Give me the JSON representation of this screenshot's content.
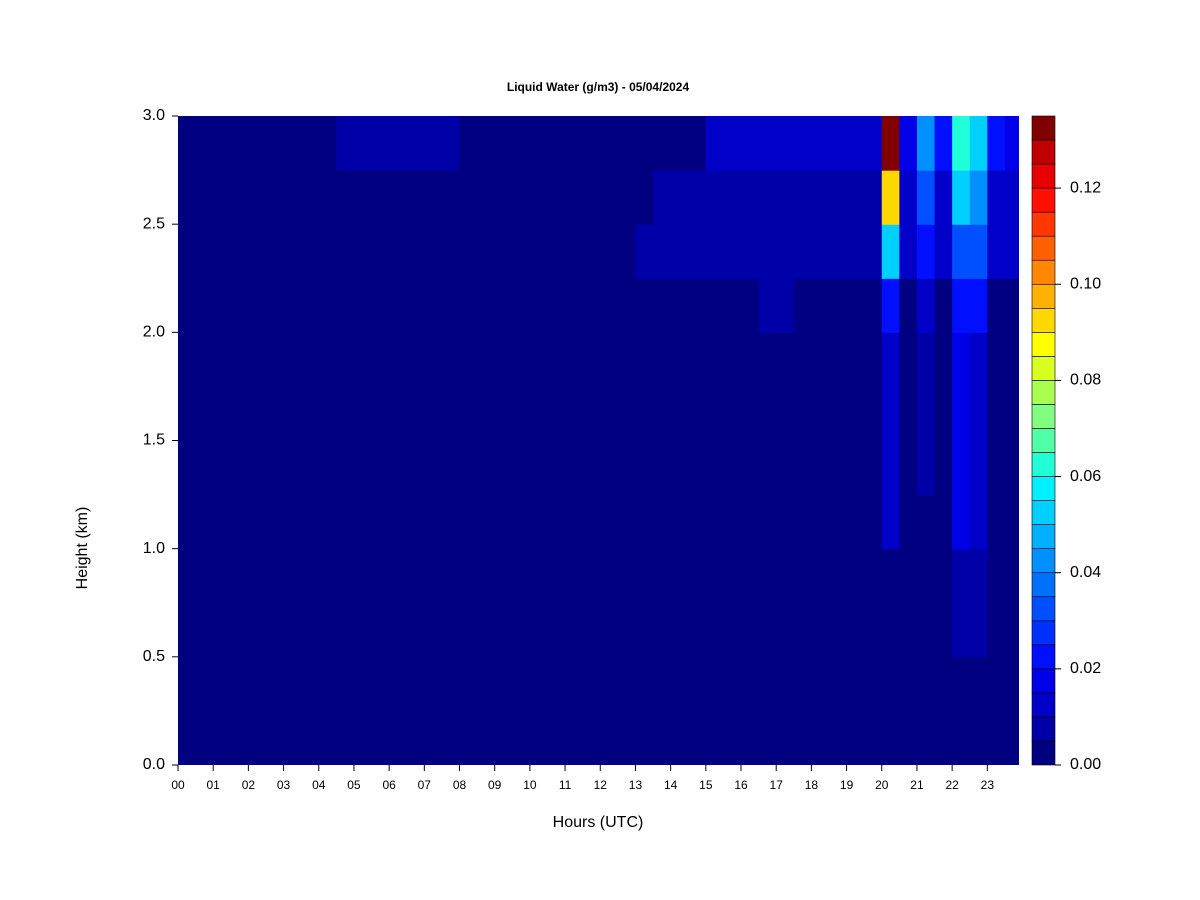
{
  "chart_data": {
    "type": "heatmap",
    "title": "Liquid Water (g/m3) - 05/04/2024",
    "x_label": "Hours (UTC)",
    "y_label": "Height (km)",
    "xlim": [
      0,
      23.9
    ],
    "ylim": [
      0,
      3
    ],
    "xticks": [
      {
        "value": 0,
        "label": "00"
      },
      {
        "value": 1,
        "label": "01"
      },
      {
        "value": 2,
        "label": "02"
      },
      {
        "value": 3,
        "label": "03"
      },
      {
        "value": 4,
        "label": "04"
      },
      {
        "value": 5,
        "label": "05"
      },
      {
        "value": 6,
        "label": "06"
      },
      {
        "value": 7,
        "label": "07"
      },
      {
        "value": 8,
        "label": "08"
      },
      {
        "value": 9,
        "label": "09"
      },
      {
        "value": 10,
        "label": "10"
      },
      {
        "value": 11,
        "label": "11"
      },
      {
        "value": 12,
        "label": "12"
      },
      {
        "value": 13,
        "label": "13"
      },
      {
        "value": 14,
        "label": "14"
      },
      {
        "value": 15,
        "label": "15"
      },
      {
        "value": 16,
        "label": "16"
      },
      {
        "value": 17,
        "label": "17"
      },
      {
        "value": 18,
        "label": "18"
      },
      {
        "value": 19,
        "label": "19"
      },
      {
        "value": 20,
        "label": "20"
      },
      {
        "value": 21,
        "label": "21"
      },
      {
        "value": 22,
        "label": "22"
      },
      {
        "value": 23,
        "label": "23"
      }
    ],
    "yticks": [
      {
        "value": 0,
        "label": "0.0"
      },
      0.5,
      {
        "value": 1,
        "label": "1.0"
      },
      1.5,
      {
        "value": 2,
        "label": "2.0"
      },
      2.5,
      {
        "value": 3,
        "label": "3.0"
      }
    ],
    "x": [
      0.25,
      0.75,
      1.25,
      1.75,
      2.25,
      2.75,
      3.25,
      3.75,
      4.25,
      4.75,
      5.25,
      5.75,
      6.25,
      6.75,
      7.25,
      7.75,
      8.25,
      8.75,
      9.25,
      9.75,
      10.25,
      10.75,
      11.25,
      11.75,
      12.25,
      12.75,
      13.25,
      13.75,
      14.25,
      14.75,
      15.25,
      15.75,
      16.25,
      16.75,
      17.25,
      17.75,
      18.25,
      18.75,
      19.25,
      19.75,
      20.25,
      20.75,
      21.25,
      21.75,
      22.25,
      22.75,
      23.25,
      23.75
    ],
    "y": [
      0.125,
      0.375,
      0.625,
      0.875,
      1.125,
      1.375,
      1.625,
      1.875,
      2.125,
      2.375,
      2.625,
      2.875
    ],
    "z": [
      [
        0,
        0,
        0,
        0,
        0,
        0,
        0,
        0,
        0,
        0,
        0,
        0,
        0,
        0,
        0,
        0,
        0,
        0,
        0,
        0,
        0,
        0,
        0,
        0,
        0,
        0,
        0,
        0,
        0,
        0,
        0,
        0,
        0,
        0,
        0,
        0,
        0,
        0,
        0,
        0,
        0,
        0,
        0,
        0,
        0,
        0,
        0,
        0
      ],
      [
        0,
        0,
        0,
        0,
        0,
        0,
        0,
        0,
        0,
        0,
        0,
        0,
        0,
        0,
        0,
        0,
        0,
        0,
        0,
        0,
        0,
        0,
        0,
        0,
        0,
        0,
        0,
        0,
        0,
        0,
        0,
        0,
        0,
        0,
        0,
        0,
        0,
        0,
        0,
        0,
        0,
        0,
        0,
        0,
        0,
        0,
        0,
        0
      ],
      [
        0,
        0,
        0,
        0,
        0,
        0,
        0,
        0,
        0,
        0,
        0,
        0,
        0,
        0,
        0,
        0,
        0,
        0,
        0,
        0,
        0,
        0,
        0,
        0,
        0,
        0,
        0,
        0,
        0,
        0,
        0,
        0,
        0,
        0,
        0,
        0,
        0,
        0,
        0,
        0,
        0,
        0,
        0,
        0,
        0.008,
        0.008,
        0,
        0
      ],
      [
        0,
        0,
        0,
        0,
        0,
        0,
        0,
        0,
        0,
        0,
        0,
        0,
        0,
        0,
        0,
        0,
        0,
        0,
        0,
        0,
        0,
        0,
        0,
        0,
        0,
        0,
        0,
        0,
        0,
        0,
        0,
        0,
        0,
        0,
        0,
        0,
        0,
        0,
        0,
        0,
        0,
        0,
        0,
        0,
        0.008,
        0.008,
        0,
        0
      ],
      [
        0,
        0,
        0,
        0,
        0,
        0,
        0,
        0,
        0,
        0,
        0,
        0,
        0,
        0,
        0,
        0,
        0,
        0,
        0,
        0,
        0,
        0,
        0,
        0,
        0,
        0,
        0,
        0,
        0,
        0,
        0,
        0,
        0,
        0,
        0,
        0,
        0,
        0,
        0,
        0,
        0.01,
        0,
        0,
        0,
        0.015,
        0.012,
        0,
        0
      ],
      [
        0,
        0,
        0,
        0,
        0,
        0,
        0,
        0,
        0,
        0,
        0,
        0,
        0,
        0,
        0,
        0,
        0,
        0,
        0,
        0,
        0,
        0,
        0,
        0,
        0,
        0,
        0,
        0,
        0,
        0,
        0,
        0,
        0,
        0,
        0,
        0,
        0,
        0,
        0,
        0,
        0.01,
        0,
        0.008,
        0,
        0.015,
        0.012,
        0,
        0
      ],
      [
        0,
        0,
        0,
        0,
        0,
        0,
        0,
        0,
        0,
        0,
        0,
        0,
        0,
        0,
        0,
        0,
        0,
        0,
        0,
        0,
        0,
        0,
        0,
        0,
        0,
        0,
        0,
        0,
        0,
        0,
        0,
        0,
        0,
        0,
        0,
        0,
        0,
        0,
        0,
        0,
        0.01,
        0,
        0.008,
        0,
        0.015,
        0.012,
        0,
        0
      ],
      [
        0,
        0,
        0,
        0,
        0,
        0,
        0,
        0,
        0,
        0,
        0,
        0,
        0,
        0,
        0,
        0,
        0,
        0,
        0,
        0,
        0,
        0,
        0,
        0,
        0,
        0,
        0,
        0,
        0,
        0,
        0,
        0,
        0,
        0,
        0,
        0,
        0,
        0,
        0,
        0,
        0.01,
        0,
        0.008,
        0,
        0.015,
        0.012,
        0,
        0
      ],
      [
        0,
        0,
        0,
        0,
        0,
        0,
        0,
        0,
        0,
        0,
        0,
        0,
        0,
        0,
        0,
        0,
        0,
        0,
        0,
        0,
        0,
        0,
        0,
        0,
        0,
        0,
        0,
        0,
        0,
        0,
        0,
        0,
        0,
        0.006,
        0.006,
        0,
        0,
        0,
        0,
        0,
        0.02,
        0,
        0.012,
        0,
        0.02,
        0.02,
        0,
        0
      ],
      [
        0,
        0,
        0,
        0,
        0,
        0,
        0,
        0,
        0,
        0,
        0,
        0,
        0,
        0,
        0,
        0,
        0,
        0,
        0,
        0,
        0,
        0,
        0,
        0,
        0,
        0,
        0.009,
        0.009,
        0.009,
        0.009,
        0.009,
        0.009,
        0.009,
        0.009,
        0.009,
        0.009,
        0.009,
        0.009,
        0.009,
        0.009,
        0.05,
        0.01,
        0.02,
        0.01,
        0.03,
        0.03,
        0.01,
        0.01
      ],
      [
        0,
        0,
        0,
        0,
        0,
        0,
        0,
        0,
        0,
        0,
        0,
        0,
        0,
        0,
        0,
        0,
        0,
        0,
        0,
        0,
        0,
        0,
        0,
        0,
        0,
        0,
        0,
        0.008,
        0.008,
        0.008,
        0.008,
        0.008,
        0.008,
        0.008,
        0.008,
        0.008,
        0.008,
        0.008,
        0.008,
        0.008,
        0.09,
        0.012,
        0.03,
        0.012,
        0.05,
        0.04,
        0.012,
        0.01
      ],
      [
        0,
        0,
        0,
        0,
        0,
        0,
        0,
        0,
        0,
        0.006,
        0.006,
        0.006,
        0.006,
        0.006,
        0.006,
        0.006,
        0,
        0,
        0,
        0,
        0,
        0,
        0,
        0,
        0,
        0,
        0,
        0,
        0,
        0,
        0.012,
        0.012,
        0.012,
        0.012,
        0.012,
        0.012,
        0.012,
        0.012,
        0.012,
        0.012,
        0.13,
        0.015,
        0.04,
        0.02,
        0.06,
        0.05,
        0.02,
        0.015
      ]
    ],
    "clim": [
      0,
      0.135
    ],
    "cticks": [
      {
        "value": 0,
        "label": "0.00"
      },
      0.02,
      0.04,
      0.06,
      0.08,
      {
        "value": 0.1,
        "label": "0.10"
      },
      0.12
    ],
    "colors": [
      "#000080",
      "#0000a8",
      "#0000c8",
      "#0000e8",
      "#0010ff",
      "#0030ff",
      "#0050ff",
      "#0070ff",
      "#0090ff",
      "#00b0ff",
      "#00d0ff",
      "#00f0ff",
      "#20ffd8",
      "#50ffa8",
      "#80ff80",
      "#a8ff50",
      "#d8ff20",
      "#ffff00",
      "#ffd800",
      "#ffb000",
      "#ff8800",
      "#ff6000",
      "#ff3800",
      "#ff1000",
      "#e80000",
      "#c00000",
      "#800000"
    ]
  }
}
